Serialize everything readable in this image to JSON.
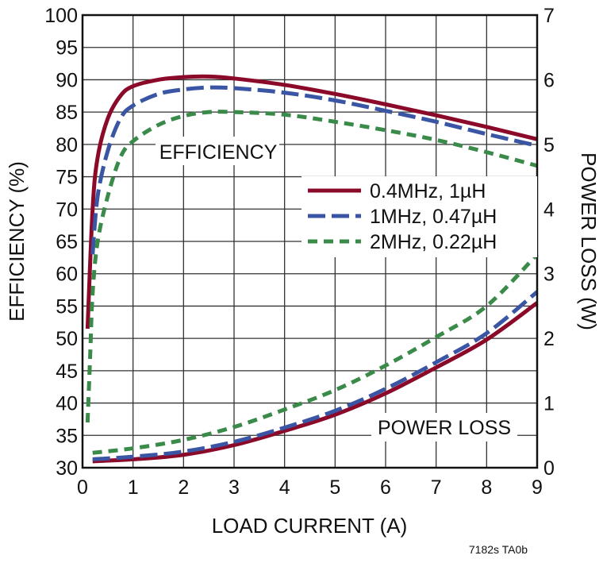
{
  "chart_data": {
    "type": "line",
    "xlabel": "LOAD CURRENT (A)",
    "ylabel": "EFFICIENCY (%)",
    "y2label": "POWER LOSS (W)",
    "xlim": [
      0,
      9
    ],
    "ylim": [
      30,
      100
    ],
    "y2lim": [
      0,
      7
    ],
    "xticks": [
      "0",
      "1",
      "2",
      "3",
      "4",
      "5",
      "6",
      "7",
      "8",
      "9"
    ],
    "yticks": [
      "30",
      "35",
      "40",
      "45",
      "50",
      "55",
      "60",
      "65",
      "70",
      "75",
      "80",
      "85",
      "90",
      "95",
      "100"
    ],
    "y2ticks": [
      "0",
      "1",
      "2",
      "3",
      "4",
      "5",
      "6",
      "7"
    ],
    "grid": true,
    "legend_placement": "center-right",
    "annotations": {
      "efficiency": "EFFICIENCY",
      "power_loss": "POWER LOSS"
    },
    "footnote": "7182s TA0b",
    "series": [
      {
        "name": "0.4MHz, 1µH",
        "color": "#8b0a2a",
        "dash": "solid",
        "efficiency": {
          "x": [
            0.1,
            0.2,
            0.3,
            0.5,
            0.75,
            1,
            1.5,
            2,
            2.5,
            3,
            4,
            5,
            6,
            7,
            8,
            9
          ],
          "y": [
            51.5,
            70,
            78,
            84,
            87.5,
            89,
            90,
            90.4,
            90.5,
            90.2,
            89.2,
            87.8,
            86.2,
            84.5,
            82.7,
            80.8
          ]
        },
        "power_loss": {
          "x": [
            0.2,
            1,
            2,
            3,
            4,
            5,
            6,
            7,
            8,
            9
          ],
          "y": [
            0.1,
            0.13,
            0.2,
            0.35,
            0.57,
            0.82,
            1.15,
            1.55,
            1.98,
            2.55
          ]
        }
      },
      {
        "name": "1MHz, 0.47µH",
        "color": "#3a55a4",
        "dash": "long",
        "efficiency": {
          "x": [
            0.2,
            0.3,
            0.5,
            0.75,
            1,
            1.5,
            2,
            2.5,
            3,
            4,
            5,
            6,
            7,
            8,
            9
          ],
          "y": [
            63,
            72,
            79,
            84,
            86,
            87.8,
            88.5,
            88.8,
            88.7,
            88,
            86.8,
            85.2,
            83.5,
            81.6,
            79.8
          ]
        },
        "power_loss": {
          "x": [
            0.2,
            1,
            2,
            3,
            4,
            5,
            6,
            7,
            8,
            9
          ],
          "y": [
            0.13,
            0.17,
            0.25,
            0.4,
            0.62,
            0.88,
            1.22,
            1.63,
            2.08,
            2.72
          ]
        }
      },
      {
        "name": "2MHz, 0.22µH",
        "color": "#3a8a4a",
        "dash": "short",
        "efficiency": {
          "x": [
            0.1,
            0.15,
            0.2,
            0.3,
            0.5,
            0.75,
            1,
            1.5,
            2,
            2.5,
            3,
            4,
            5,
            6,
            7,
            8,
            9
          ],
          "y": [
            37,
            47,
            57,
            65,
            72,
            78,
            80.5,
            83,
            84.4,
            85,
            85,
            84.6,
            83.5,
            82.2,
            80.7,
            78.8,
            76.7
          ]
        },
        "power_loss": {
          "x": [
            0.2,
            1,
            2,
            3,
            4,
            5,
            6,
            7,
            8,
            9
          ],
          "y": [
            0.23,
            0.3,
            0.43,
            0.63,
            0.9,
            1.2,
            1.58,
            2.02,
            2.5,
            3.3
          ]
        }
      }
    ]
  }
}
